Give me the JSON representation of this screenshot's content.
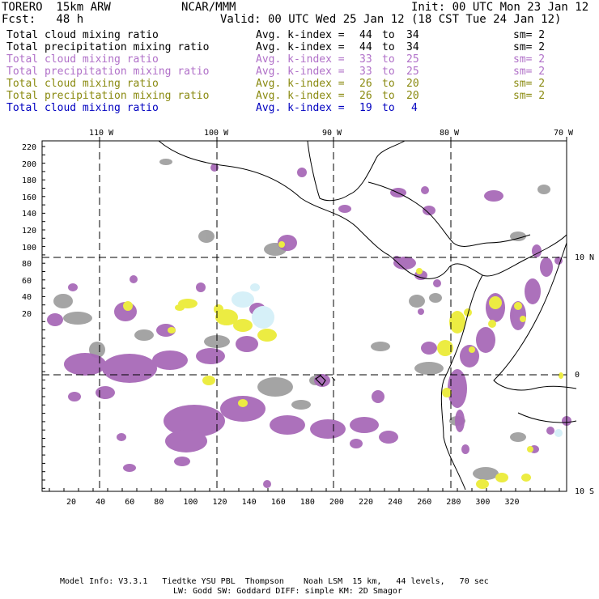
{
  "header": {
    "model": "TORERO  15km ARW",
    "org": "NCAR/MMM",
    "init": "Init: 00 UTC Mon 23 Jan 12",
    "fcst": "Fcst:   48 h",
    "valid": "Valid: 00 UTC Wed 25 Jan 12 (18 CST Tue 24 Jan 12)"
  },
  "legend": [
    {
      "field": "Total cloud mixing ratio",
      "kindex": "Avg. k-index = ",
      "lo": "44",
      "to": "to",
      "hi": "34",
      "sm": "sm= 2",
      "color": "#000000"
    },
    {
      "field": "Total precipitation mixing ratio",
      "kindex": "Avg. k-index = ",
      "lo": "44",
      "to": "to",
      "hi": "34",
      "sm": "sm= 2",
      "color": "#000000"
    },
    {
      "field": "Total cloud mixing ratio",
      "kindex": "Avg. k-index = ",
      "lo": "33",
      "to": "to",
      "hi": "25",
      "sm": "sm= 2",
      "color": "#b070c8"
    },
    {
      "field": "Total precipitation mixing ratio",
      "kindex": "Avg. k-index = ",
      "lo": "33",
      "to": "to",
      "hi": "25",
      "sm": "sm= 2",
      "color": "#b070c8"
    },
    {
      "field": "Total cloud mixing ratio",
      "kindex": "Avg. k-index = ",
      "lo": "26",
      "to": "to",
      "hi": "20",
      "sm": "sm= 2",
      "color": "#8a8a10"
    },
    {
      "field": "Total precipitation mixing ratio",
      "kindex": "Avg. k-index = ",
      "lo": "26",
      "to": "to",
      "hi": "20",
      "sm": "sm= 2",
      "color": "#8a8a10"
    },
    {
      "field": "Total cloud mixing ratio",
      "kindex": "Avg. k-index = ",
      "lo": "19",
      "to": "to",
      "hi": "4",
      "sm": "",
      "color": "#0000c0"
    }
  ],
  "top_axis": [
    "110 W",
    "100 W",
    "90 W",
    "80 W",
    "70 W"
  ],
  "right_axis": [
    "10 N",
    "0",
    "10 S"
  ],
  "left_axis": [
    "220",
    "200",
    "180",
    "160",
    "140",
    "120",
    "100",
    "80",
    "60",
    "40",
    "20"
  ],
  "bottom_axis": [
    "20",
    "40",
    "60",
    "80",
    "100",
    "120",
    "140",
    "160",
    "180",
    "200",
    "220",
    "240",
    "260",
    "280",
    "300",
    "320"
  ],
  "footer": {
    "line1": "Model Info: V3.3.1   Tiedtke YSU PBL  Thompson    Noah LSM  15 km,   44 levels,   70 sec",
    "line2": "LW: Godd SW: Goddard DIFF: simple KM: 2D Smagor"
  },
  "colors": {
    "purple": "#a668b8",
    "gray": "#9c9c9c",
    "yellow": "#ecec40",
    "cyan": "#d0f0f8",
    "frame": "#000000"
  }
}
